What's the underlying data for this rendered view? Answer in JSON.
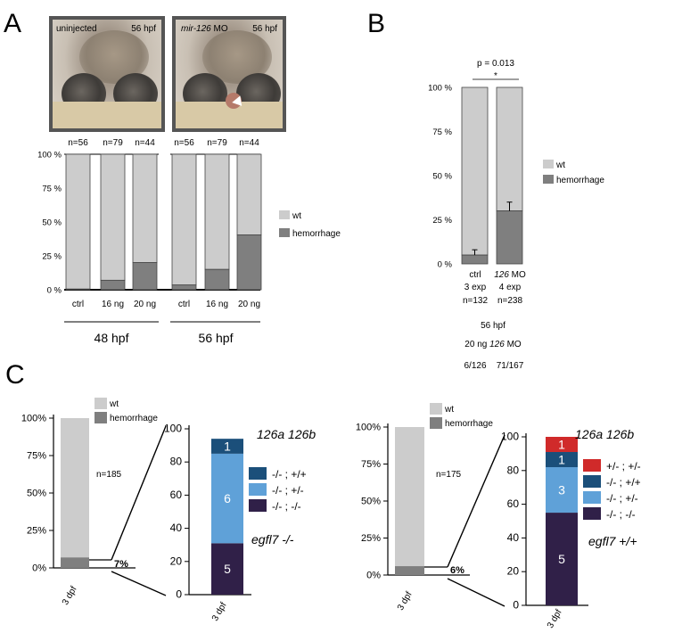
{
  "panel_labels": {
    "a": "A",
    "b": "B",
    "c": "C"
  },
  "colors": {
    "wt": "#cccccc",
    "hemorrhage": "#7f7f7f",
    "red": "#d02a2a",
    "navy": "#1b4f7a",
    "light_blue": "#5fa1d8",
    "dark_purple": "#302048"
  },
  "panel_a": {
    "photos": [
      {
        "label": "uninjected",
        "stage": "56 hpf"
      },
      {
        "label_italic": "mir-126",
        "label_rest": " MO",
        "stage": "56 hpf"
      }
    ],
    "groups": [
      "48 hpf",
      "56 hpf"
    ]
  },
  "panel_b": {
    "pvalue": "p = 0.013",
    "sig": "*",
    "col_labels": [
      {
        "line1": "ctrl",
        "line2": "3 exp",
        "line3": "n=132"
      },
      {
        "line1_italic": "126",
        "line1_rest": " MO",
        "line2": "4 exp",
        "line3": "n=238"
      }
    ],
    "footer": {
      "stage": "56 hpf",
      "treat_pre": "20 ng ",
      "treat_italic": "126",
      "treat_post": " MO",
      "counts": [
        "6/126",
        "71/167"
      ]
    }
  },
  "panel_c": {
    "left": {
      "n": "n=185",
      "pct": "7%",
      "title": "126a 126b",
      "genotype": "egfl7 -/-",
      "x_label": "3 dpf"
    },
    "right": {
      "n": "n=175",
      "pct": "6%",
      "title": "126a 126b",
      "genotype": "egfl7 +/+",
      "x_label": "3 dpf"
    }
  },
  "chart_data": [
    {
      "type": "bar",
      "panel": "A",
      "categories": [
        "ctrl",
        "16 ng",
        "20 ng",
        "ctrl",
        "16 ng",
        "20 ng"
      ],
      "category_groups": [
        "48 hpf",
        "48 hpf",
        "48 hpf",
        "56 hpf",
        "56 hpf",
        "56 hpf"
      ],
      "n_labels": [
        "n=56",
        "n=79",
        "n=44",
        "n=56",
        "n=79",
        "n=44"
      ],
      "stacked": true,
      "series": [
        {
          "name": "hemorrhage",
          "values": [
            0.5,
            7,
            20,
            3.5,
            15,
            40.5
          ]
        },
        {
          "name": "wt",
          "values": [
            99.5,
            93,
            80,
            96.5,
            85,
            59.5
          ]
        }
      ],
      "yticks": [
        "0 %",
        "25 %",
        "50 %",
        "75 %",
        "100 %"
      ],
      "ylim": [
        0,
        100
      ],
      "legend_position": "right"
    },
    {
      "type": "bar",
      "panel": "B",
      "categories": [
        "ctrl",
        "126 MO"
      ],
      "stacked": true,
      "series": [
        {
          "name": "hemorrhage",
          "values": [
            5,
            30
          ],
          "error": [
            3,
            5
          ]
        },
        {
          "name": "wt",
          "values": [
            95,
            70
          ]
        }
      ],
      "yticks": [
        "0 %",
        "25 %",
        "50 %",
        "75 %",
        "100 %"
      ],
      "ylim": [
        0,
        100
      ],
      "legend_position": "right"
    },
    {
      "type": "bar",
      "panel": "C-left-phenotype",
      "categories": [
        "3 dpf"
      ],
      "stacked": true,
      "series": [
        {
          "name": "hemorrhage",
          "values": [
            7
          ]
        },
        {
          "name": "wt",
          "values": [
            93
          ]
        }
      ],
      "yticks": [
        "0%",
        "25%",
        "50%",
        "75%",
        "100%"
      ],
      "ylim": [
        0,
        100
      ],
      "legend_position": "top"
    },
    {
      "type": "bar",
      "panel": "C-left-genotype",
      "categories": [
        "3 dpf"
      ],
      "stacked": true,
      "series": [
        {
          "name": "-/- ; -/-",
          "values": [
            5
          ],
          "extent": [
            0,
            31
          ]
        },
        {
          "name": "-/- ; +/-",
          "values": [
            6
          ],
          "extent": [
            31,
            85
          ]
        },
        {
          "name": "-/- ; +/+",
          "values": [
            1
          ],
          "extent": [
            85,
            94
          ]
        }
      ],
      "yticks": [
        "0",
        "20",
        "40",
        "60",
        "80",
        "100"
      ],
      "ylim": [
        0,
        100
      ],
      "legend_position": "right"
    },
    {
      "type": "bar",
      "panel": "C-right-phenotype",
      "categories": [
        "3 dpf"
      ],
      "stacked": true,
      "series": [
        {
          "name": "hemorrhage",
          "values": [
            6
          ]
        },
        {
          "name": "wt",
          "values": [
            94
          ]
        }
      ],
      "yticks": [
        "0%",
        "25%",
        "50%",
        "75%",
        "100%"
      ],
      "ylim": [
        0,
        100
      ],
      "legend_position": "top"
    },
    {
      "type": "bar",
      "panel": "C-right-genotype",
      "categories": [
        "3 dpf"
      ],
      "stacked": true,
      "series": [
        {
          "name": "-/- ; -/-",
          "values": [
            5
          ],
          "extent": [
            0,
            55
          ]
        },
        {
          "name": "-/- ; +/-",
          "values": [
            3
          ],
          "extent": [
            55,
            82
          ]
        },
        {
          "name": "-/- ; +/+",
          "values": [
            1
          ],
          "extent": [
            82,
            91
          ]
        },
        {
          "name": "+/- ; +/-",
          "values": [
            1
          ],
          "extent": [
            91,
            100
          ]
        }
      ],
      "yticks": [
        "0",
        "20",
        "40",
        "60",
        "80",
        "100"
      ],
      "ylim": [
        0,
        100
      ],
      "legend_position": "right"
    }
  ]
}
